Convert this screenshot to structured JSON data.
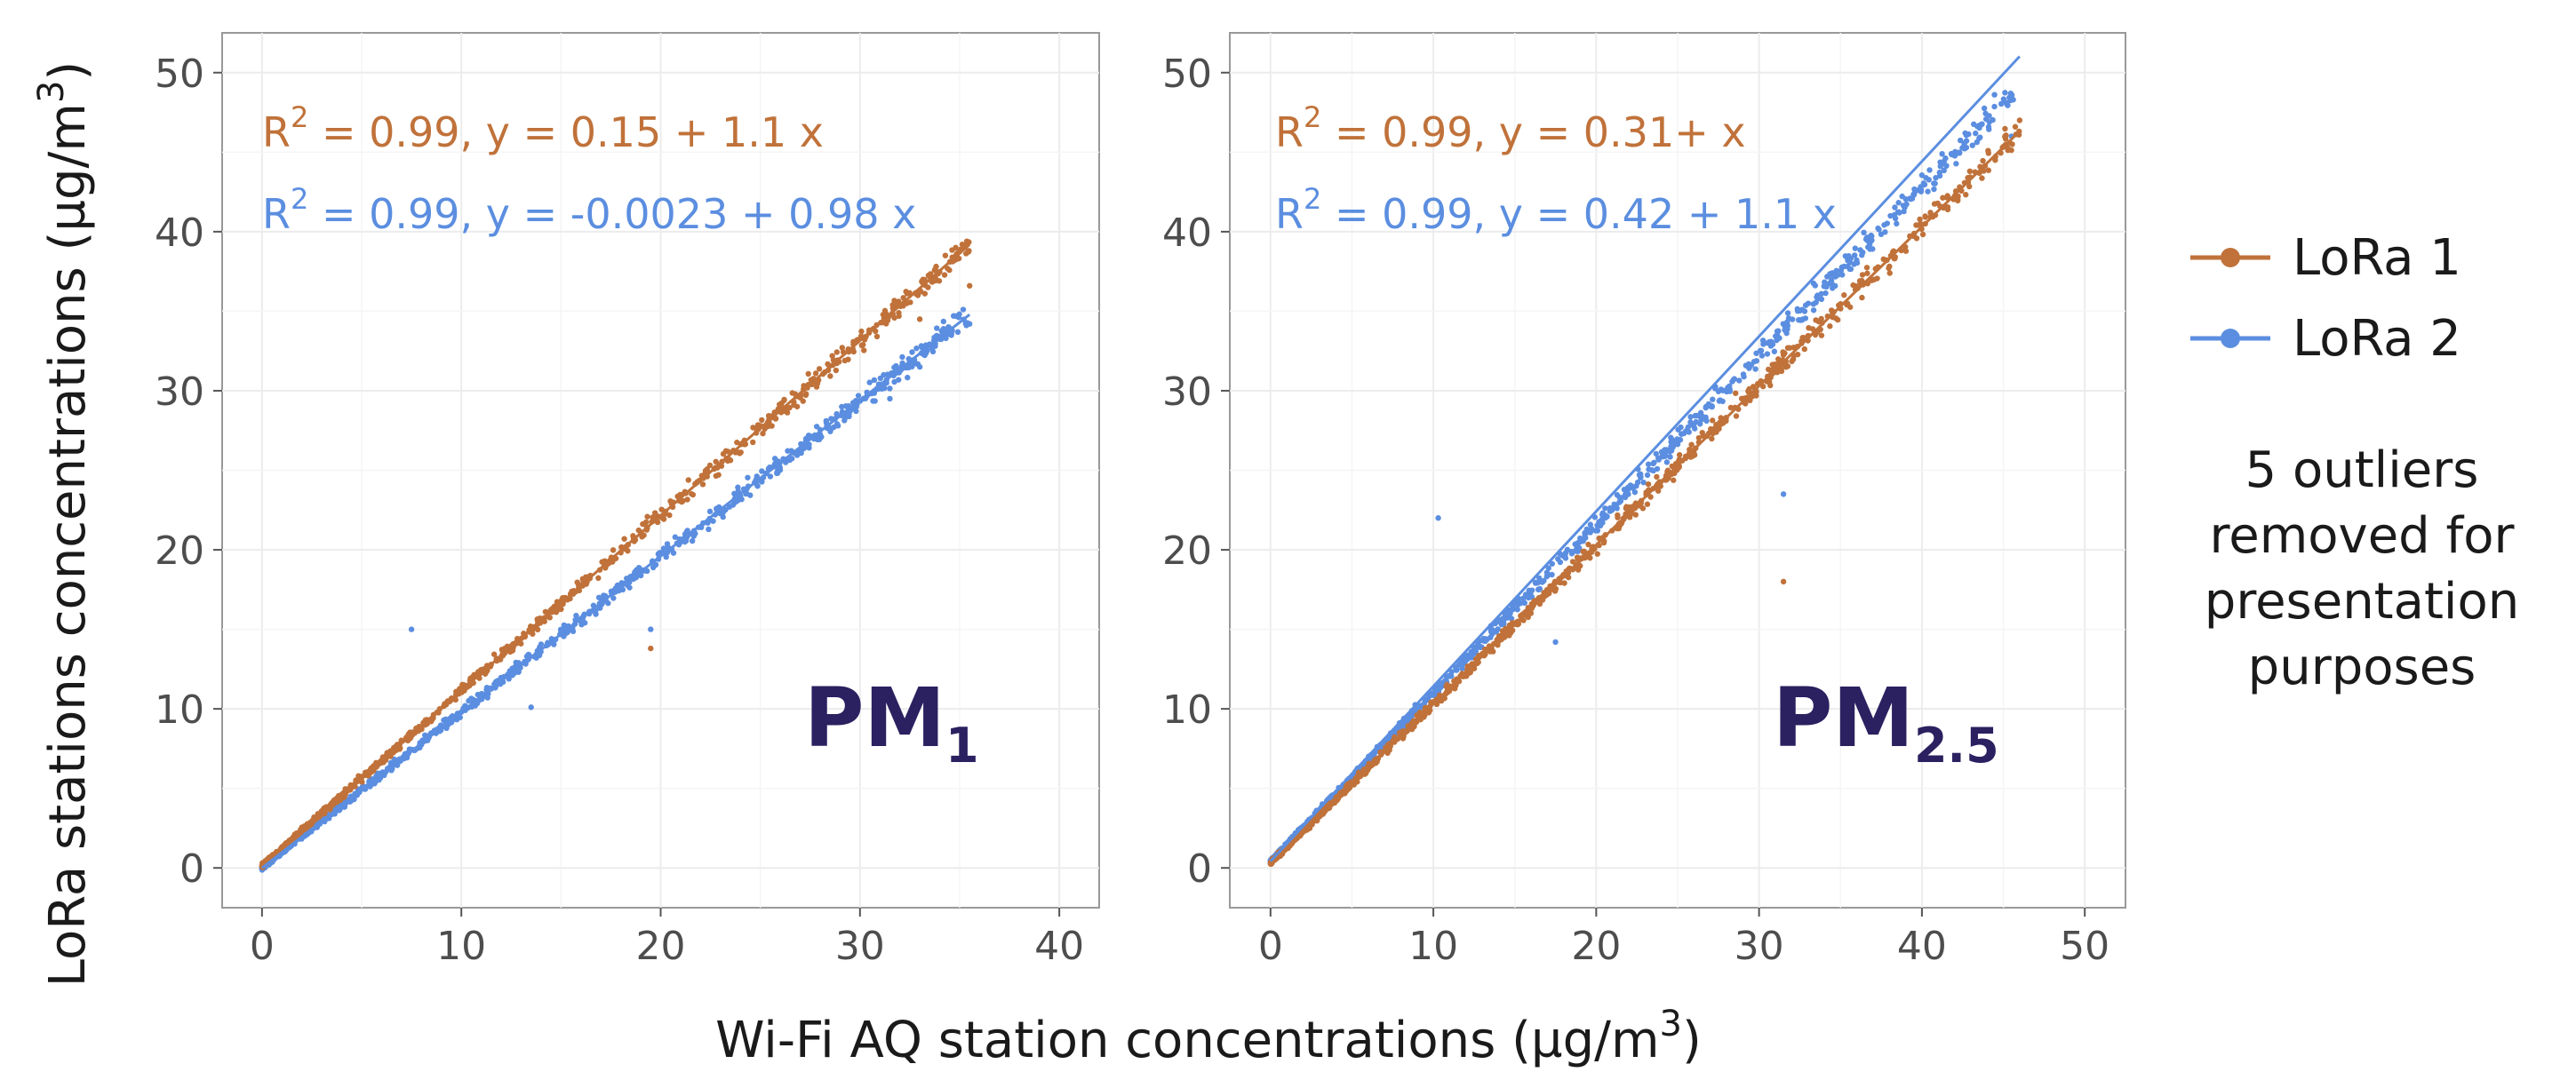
{
  "figure": {
    "x_axis_title": "Wi-Fi AQ station concentrations (µg/m",
    "x_axis_title_sup": "3",
    "x_axis_title_close": ")",
    "y_axis_title": "LoRa stations concentrations (µg/m",
    "y_axis_title_sup": "3",
    "y_axis_title_close": ")",
    "legend": {
      "items": [
        {
          "label": "LoRa 1",
          "color": "#c0723a"
        },
        {
          "label": "LoRa 2",
          "color": "#5b8ee0"
        }
      ]
    },
    "note_lines": [
      "5 outliers",
      "removed for",
      "presentation",
      "purposes"
    ],
    "colors": {
      "series1": "#c0723a",
      "series2": "#5b8ee0",
      "panel_label": "#2b2060",
      "grid": "#ececec"
    }
  },
  "chart_data": [
    {
      "type": "scatter",
      "panel_label": "PM",
      "panel_label_sub": "1",
      "xlim": [
        -2,
        42
      ],
      "ylim": [
        -2.5,
        52.5
      ],
      "xticks": [
        0,
        10,
        20,
        30,
        40
      ],
      "yticks": [
        0,
        10,
        20,
        30,
        40,
        50
      ],
      "grid": true,
      "series": [
        {
          "name": "LoRa 1",
          "equation": {
            "r": "R",
            "r_sup": "2",
            "text": " = 0.99, y = 0.15 + 1.1 x"
          },
          "fit": {
            "intercept": 0.15,
            "slope": 1.1,
            "x_range": [
              0,
              35.5
            ]
          },
          "points": {
            "x_max": 35.5,
            "slope": 1.1,
            "intercept": 0.15
          },
          "outliers": [
            [
              19.5,
              13.8
            ],
            [
              33,
              34.5
            ],
            [
              35.5,
              36.6
            ]
          ]
        },
        {
          "name": "LoRa 2",
          "equation": {
            "r": "R",
            "r_sup": "2",
            "text": " = 0.99, y = -0.0023 + 0.98 x"
          },
          "fit": {
            "intercept": -0.0023,
            "slope": 0.98,
            "x_range": [
              0,
              35.5
            ]
          },
          "points": {
            "x_max": 35.5,
            "slope": 0.98,
            "intercept": -0.0023
          },
          "outliers": [
            [
              7.5,
              15
            ],
            [
              13.5,
              10.1
            ],
            [
              19.5,
              15
            ],
            [
              31.5,
              29.5
            ],
            [
              33,
              31.5
            ],
            [
              35.5,
              34.2
            ]
          ]
        }
      ]
    },
    {
      "type": "scatter",
      "panel_label": "PM",
      "panel_label_sub": "2.5",
      "xlim": [
        -2.5,
        52.5
      ],
      "ylim": [
        -2.5,
        52.5
      ],
      "xticks": [
        0,
        10,
        20,
        30,
        40,
        50
      ],
      "yticks": [
        0,
        10,
        20,
        30,
        40,
        50
      ],
      "grid": true,
      "series": [
        {
          "name": "LoRa 1",
          "equation": {
            "r": "R",
            "r_sup": "2",
            "text": " = 0.99, y = 0.31+ x"
          },
          "fit": {
            "intercept": 0.31,
            "slope": 1.0,
            "x_range": [
              0,
              46
            ]
          },
          "points": {
            "x_max": 46,
            "slope": 1.0,
            "intercept": 0.31
          },
          "outliers": [
            [
              31.5,
              18
            ],
            [
              44.5,
              44.5
            ],
            [
              46,
              47
            ]
          ]
        },
        {
          "name": "LoRa 2",
          "equation": {
            "r": "R",
            "r_sup": "2",
            "text": " = 0.99, y = 0.42 + 1.1 x"
          },
          "fit": {
            "intercept": 0.42,
            "slope": 1.1,
            "x_range": [
              0,
              46
            ]
          },
          "points": {
            "x_max": 46,
            "slope": 1.06,
            "intercept": 0.42
          },
          "outliers": [
            [
              10.3,
              22
            ],
            [
              17.5,
              14.2
            ],
            [
              31.5,
              23.5
            ],
            [
              45.5,
              46
            ]
          ]
        }
      ]
    }
  ]
}
